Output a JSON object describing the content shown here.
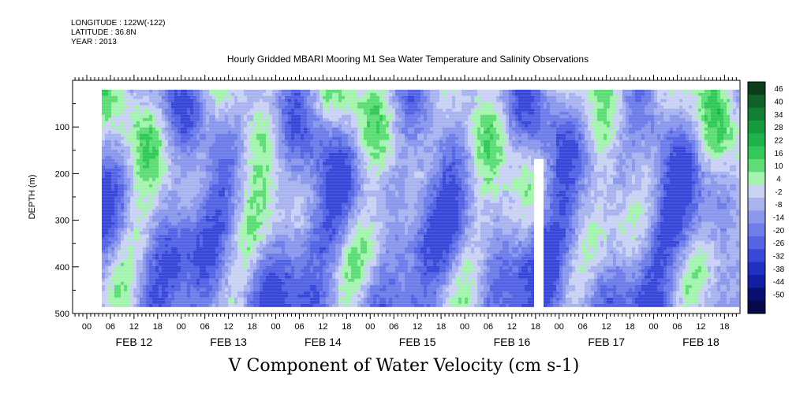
{
  "header": {
    "longitude": "LONGITUDE : 122W(-122)",
    "latitude": "LATITUDE : 36.8N",
    "year": "YEAR : 2013",
    "title": "Hourly Gridded MBARI Mooring M1 Sea Water Temperature and Salinity Observations"
  },
  "footer_title": "V Component of Water Velocity (cm s-1)",
  "chart_data": {
    "type": "heatmap",
    "title": "Hourly Gridded MBARI Mooring M1 Sea Water Temperature and Salinity Observations",
    "xlabel": "",
    "ylabel": "DEPTH (m)",
    "ylim": [
      500,
      0
    ],
    "y_ticks": [
      100,
      200,
      300,
      400,
      500
    ],
    "x_hour_labels": [
      "00",
      "06",
      "12",
      "18",
      "00",
      "06",
      "12",
      "18",
      "00",
      "06",
      "12",
      "18",
      "00",
      "06",
      "12",
      "18",
      "00",
      "06",
      "12",
      "18",
      "00",
      "06",
      "12",
      "18",
      "00",
      "06",
      "12",
      "18"
    ],
    "x_day_labels": [
      "FEB 12",
      "FEB 13",
      "FEB 14",
      "FEB 15",
      "FEB 16",
      "FEB 17",
      "FEB 18"
    ],
    "colorbar_levels": [
      "46",
      "40",
      "34",
      "28",
      "22",
      "16",
      "10",
      "4",
      "-2",
      "-8",
      "-14",
      "-20",
      "-26",
      "-32",
      "-38",
      "-44",
      "-50"
    ],
    "colorbar_colors": [
      "#0b3d1a",
      "#10612a",
      "#137f34",
      "#189a3f",
      "#20b24a",
      "#34c85a",
      "#5fdc78",
      "#a6f2b0",
      "#c9d2f2",
      "#a9b4ee",
      "#8c98ea",
      "#6f7ee6",
      "#5564e0",
      "#3a48d6",
      "#2230c2",
      "#121fa0",
      "#0a1070",
      "#050a4a"
    ],
    "data_extent": {
      "depth_top": 20,
      "depth_bottom": 485
    }
  }
}
